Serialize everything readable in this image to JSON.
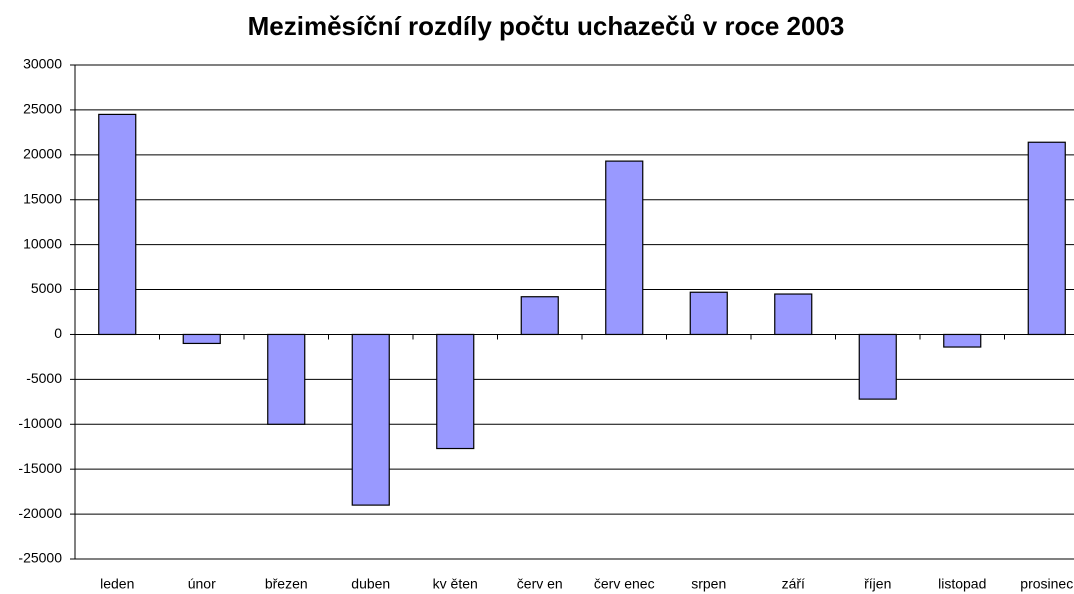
{
  "chart_data": {
    "type": "bar",
    "title": "Meziměsíční rozdíly počtu uchazečů v roce 2003",
    "categories": [
      "leden",
      "únor",
      "březen",
      "duben",
      "kv ěten",
      "červ en",
      "červ enec",
      "srpen",
      "září",
      "říjen",
      "listopad",
      "prosinec"
    ],
    "values": [
      24500,
      -1000,
      -10000,
      -19000,
      -12700,
      4200,
      19300,
      4700,
      4500,
      -7200,
      -1400,
      21400
    ],
    "color": "#9999ff",
    "ylim": [
      -25000,
      30000
    ],
    "yticks": [
      -25000,
      -20000,
      -15000,
      -10000,
      -5000,
      0,
      5000,
      10000,
      15000,
      20000,
      25000,
      30000
    ],
    "grid": true
  }
}
